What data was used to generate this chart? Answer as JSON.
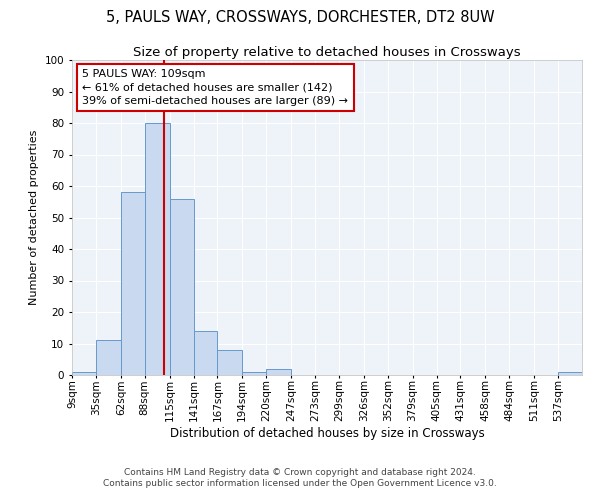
{
  "title1": "5, PAULS WAY, CROSSWAYS, DORCHESTER, DT2 8UW",
  "title2": "Size of property relative to detached houses in Crossways",
  "xlabel": "Distribution of detached houses by size in Crossways",
  "ylabel": "Number of detached properties",
  "footnote1": "Contains HM Land Registry data © Crown copyright and database right 2024.",
  "footnote2": "Contains public sector information licensed under the Open Government Licence v3.0.",
  "bin_edges": [
    9,
    35,
    62,
    88,
    115,
    141,
    167,
    194,
    220,
    247,
    273,
    299,
    326,
    352,
    379,
    405,
    431,
    458,
    484,
    511,
    537
  ],
  "bin_labels": [
    "9sqm",
    "35sqm",
    "62sqm",
    "88sqm",
    "115sqm",
    "141sqm",
    "167sqm",
    "194sqm",
    "220sqm",
    "247sqm",
    "273sqm",
    "299sqm",
    "326sqm",
    "352sqm",
    "379sqm",
    "405sqm",
    "431sqm",
    "458sqm",
    "484sqm",
    "511sqm",
    "537sqm"
  ],
  "bar_heights": [
    1,
    11,
    58,
    80,
    56,
    14,
    8,
    1,
    2,
    0,
    0,
    0,
    0,
    0,
    0,
    0,
    0,
    0,
    0,
    0,
    1
  ],
  "bar_color": "#c8d9f0",
  "bar_edge_color": "#6699cc",
  "property_size": 109,
  "vline_color": "#cc0000",
  "annotation_text": "5 PAULS WAY: 109sqm\n← 61% of detached houses are smaller (142)\n39% of semi-detached houses are larger (89) →",
  "annotation_box_color": "#ffffff",
  "annotation_box_edge": "#cc0000",
  "ylim": [
    0,
    100
  ],
  "background_color": "#eef2f9",
  "grid_color": "#ffffff",
  "title1_fontsize": 10.5,
  "title2_fontsize": 9.5,
  "xlabel_fontsize": 8.5,
  "ylabel_fontsize": 8,
  "tick_fontsize": 7.5,
  "annot_fontsize": 8,
  "footnote_fontsize": 6.5
}
